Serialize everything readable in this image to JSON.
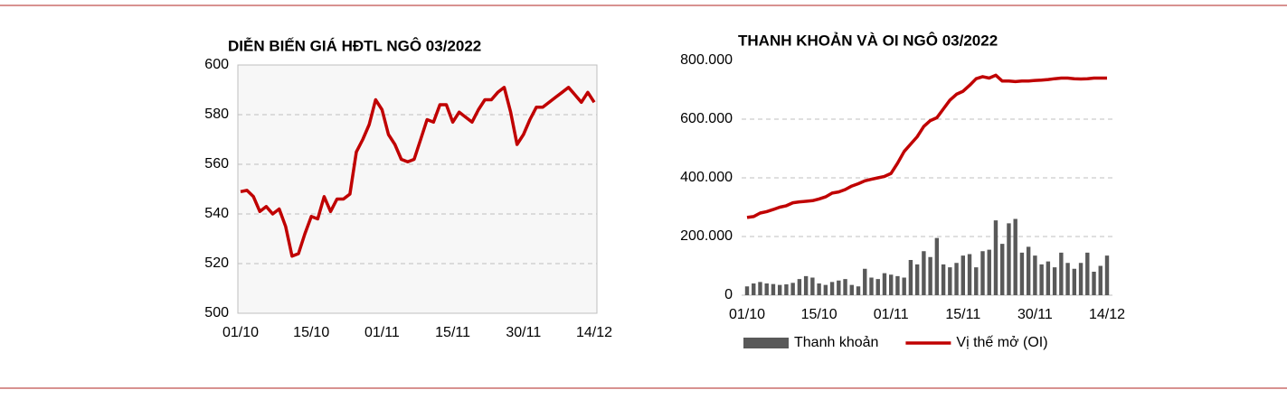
{
  "chart_data": [
    {
      "type": "line",
      "title": "DIỄN BIẾN GIÁ HĐTL NGÔ 03/2022",
      "categories": [
        "01/10",
        null,
        null,
        null,
        null,
        null,
        null,
        null,
        null,
        null,
        null,
        "15/10",
        null,
        null,
        null,
        null,
        null,
        null,
        null,
        null,
        null,
        null,
        "01/11",
        null,
        null,
        null,
        null,
        null,
        null,
        null,
        null,
        null,
        null,
        "15/11",
        null,
        null,
        null,
        null,
        null,
        null,
        null,
        null,
        null,
        null,
        "30/11",
        null,
        null,
        null,
        null,
        null,
        null,
        null,
        null,
        null,
        null,
        "14/12"
      ],
      "values": [
        549,
        549.5,
        547,
        541,
        543,
        540,
        542,
        535,
        523,
        524,
        532,
        539,
        538,
        547,
        541,
        546,
        546,
        548,
        565,
        570,
        576,
        586,
        582,
        572,
        568,
        562,
        561,
        562,
        570,
        578,
        577,
        584,
        584,
        577,
        581,
        579,
        577,
        582,
        586,
        586,
        589,
        591,
        581,
        568,
        572,
        578,
        583,
        583,
        585,
        587,
        589,
        591,
        588,
        585,
        589,
        585
      ],
      "color": "#c00000",
      "ylim": [
        500,
        600
      ],
      "yticks": [
        500,
        520,
        540,
        560,
        580,
        600
      ],
      "grid": true
    },
    {
      "type": "bar",
      "title": "THANH KHOẢN VÀ OI NGÔ 03/2022",
      "categories": [
        "01/10",
        null,
        null,
        null,
        null,
        null,
        null,
        null,
        null,
        null,
        null,
        "15/10",
        null,
        null,
        null,
        null,
        null,
        null,
        null,
        null,
        null,
        null,
        "01/11",
        null,
        null,
        null,
        null,
        null,
        null,
        null,
        null,
        null,
        null,
        "15/11",
        null,
        null,
        null,
        null,
        null,
        null,
        null,
        null,
        null,
        null,
        "30/11",
        null,
        null,
        null,
        null,
        null,
        null,
        null,
        null,
        null,
        null,
        "14/12"
      ],
      "series": [
        {
          "name": "Thanh khoản",
          "type": "bar",
          "color": "#595959",
          "values": [
            30000,
            40000,
            45000,
            40000,
            38000,
            35000,
            37000,
            42000,
            55000,
            65000,
            60000,
            40000,
            35000,
            45000,
            50000,
            55000,
            35000,
            30000,
            90000,
            60000,
            55000,
            75000,
            70000,
            65000,
            60000,
            120000,
            105000,
            150000,
            130000,
            195000,
            105000,
            95000,
            110000,
            135000,
            140000,
            95000,
            150000,
            155000,
            255000,
            175000,
            245000,
            260000,
            145000,
            165000,
            135000,
            105000,
            115000,
            95000,
            145000,
            110000,
            90000,
            110000,
            145000,
            80000,
            100000,
            135000
          ]
        },
        {
          "name": "Vị thế mở (OI)",
          "type": "line",
          "color": "#c00000",
          "values": [
            265000,
            268000,
            280000,
            285000,
            292000,
            300000,
            305000,
            315000,
            318000,
            320000,
            322000,
            328000,
            335000,
            348000,
            352000,
            360000,
            372000,
            380000,
            390000,
            395000,
            400000,
            405000,
            415000,
            450000,
            490000,
            515000,
            540000,
            575000,
            595000,
            605000,
            635000,
            665000,
            685000,
            695000,
            715000,
            738000,
            745000,
            740000,
            750000,
            730000,
            730000,
            728000,
            730000,
            730000,
            732000,
            733000,
            735000,
            738000,
            740000,
            740000,
            738000,
            737000,
            738000,
            740000,
            740000,
            740000
          ]
        }
      ],
      "ylim": [
        0,
        800000
      ],
      "yticks": [
        0,
        {
          "value": 200000,
          "label": "200.000"
        },
        {
          "value": 400000,
          "label": "400.000"
        },
        {
          "value": 600000,
          "label": "600.000"
        },
        {
          "value": 800000,
          "label": "800.000"
        }
      ],
      "grid": true,
      "legend": "bottom"
    }
  ]
}
